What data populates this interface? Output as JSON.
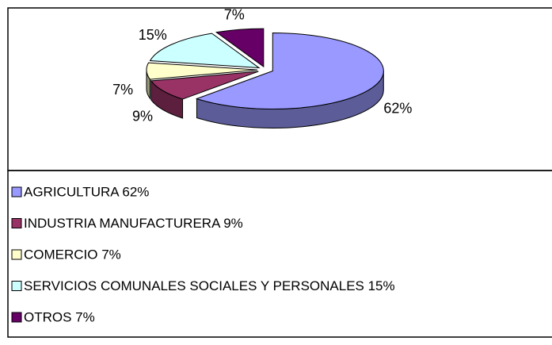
{
  "chart_data": {
    "type": "pie3d",
    "categories": [
      "AGRICULTURA 62%",
      "INDUSTRIA MANUFACTURERA 9%",
      "COMERCIO 7%",
      "SERVICIOS COMUNALES SOCIALES Y PERSONALES 15%",
      "OTROS 7%"
    ],
    "values": [
      62,
      9,
      7,
      15,
      7
    ],
    "value_labels": [
      "62%",
      "9%",
      "7%",
      "15%",
      "7%"
    ],
    "colors": [
      "#9999ff",
      "#993366",
      "#ffffcc",
      "#ccffff",
      "#660066"
    ]
  }
}
